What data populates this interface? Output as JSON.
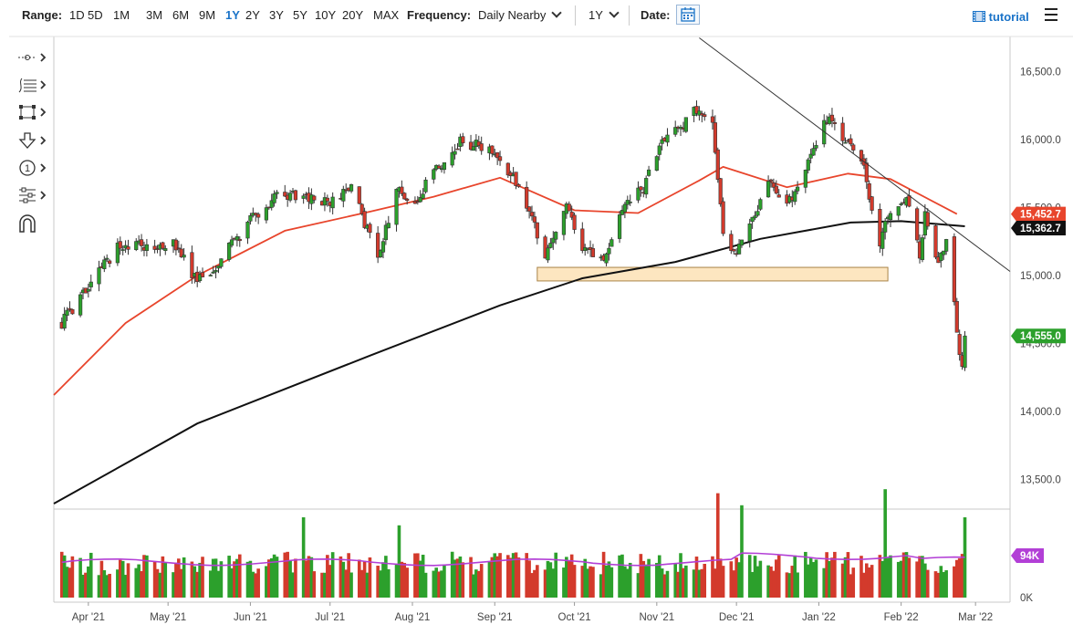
{
  "toolbar": {
    "range_label": "Range:",
    "ranges": [
      "1D",
      "5D",
      "1M",
      "3M",
      "6M",
      "9M",
      "1Y",
      "2Y",
      "3Y",
      "5Y",
      "10Y",
      "20Y",
      "MAX"
    ],
    "active_range": "1Y",
    "frequency_label": "Frequency:",
    "frequency_value": "Daily Nearby",
    "period_value": "1Y",
    "date_label": "Date:",
    "tutorial_label": "tutorial"
  },
  "icons": {
    "date": "calendar-icon",
    "tutorial": "film-icon",
    "menu": "hamburger-menu-icon",
    "tools": [
      "crosshair-tool-icon",
      "fib-lines-tool-icon",
      "rectangle-tool-icon",
      "arrow-down-tool-icon",
      "annotation-number-icon",
      "multi-line-tool-icon",
      "magnet-icon"
    ]
  },
  "colors": {
    "up": "#2ca02c",
    "down": "#d33a2c",
    "ma_fast": "#e8452c",
    "ma_slow": "#111111",
    "volume_avg": "#b23fd6",
    "support_zone": "#fde6c0",
    "support_zone_border": "#a88348"
  },
  "chart_data": {
    "type": "candlestick",
    "price_axis": {
      "ticks": [
        13500,
        14000,
        14500,
        15000,
        15500,
        16000,
        16500
      ],
      "tick_labels": [
        "13,500.0",
        "14,000.0",
        "14,500.0",
        "15,000.0",
        "15,500.0",
        "16,000.0",
        "16,500.0"
      ],
      "range": [
        13280,
        16760
      ]
    },
    "x_axis": {
      "labels": [
        "Apr '21",
        "May '21",
        "Jun '21",
        "Jul '21",
        "Aug '21",
        "Sep '21",
        "Oct '21",
        "Nov '21",
        "Dec '21",
        "Jan '22",
        "Feb '22",
        "Mar '22"
      ],
      "range": [
        "2021-03-19",
        "2022-03-14"
      ]
    },
    "price_key_points": [
      [
        "2021-03-22",
        14650
      ],
      [
        "2021-04-06",
        15050
      ],
      [
        "2021-04-12",
        15200
      ],
      [
        "2021-04-22",
        15220
      ],
      [
        "2021-05-03",
        15250
      ],
      [
        "2021-05-12",
        14950
      ],
      [
        "2021-05-20",
        15100
      ],
      [
        "2021-06-01",
        15400
      ],
      [
        "2021-06-10",
        15580
      ],
      [
        "2021-06-21",
        15580
      ],
      [
        "2021-07-01",
        15520
      ],
      [
        "2021-07-09",
        15640
      ],
      [
        "2021-07-19",
        15150
      ],
      [
        "2021-07-26",
        15620
      ],
      [
        "2021-08-02",
        15550
      ],
      [
        "2021-08-13",
        15850
      ],
      [
        "2021-08-19",
        16000
      ],
      [
        "2021-08-26",
        15950
      ],
      [
        "2021-09-03",
        15880
      ],
      [
        "2021-09-09",
        15680
      ],
      [
        "2021-09-20",
        15160
      ],
      [
        "2021-09-28",
        15510
      ],
      [
        "2021-10-04",
        15190
      ],
      [
        "2021-10-13",
        15120
      ],
      [
        "2021-10-18",
        15480
      ],
      [
        "2021-10-27",
        15650
      ],
      [
        "2021-11-03",
        16020
      ],
      [
        "2021-11-12",
        16130
      ],
      [
        "2021-11-17",
        16250
      ],
      [
        "2021-11-22",
        16100
      ],
      [
        "2021-11-26",
        15300
      ],
      [
        "2021-11-30",
        15150
      ],
      [
        "2021-12-06",
        15350
      ],
      [
        "2021-12-13",
        15700
      ],
      [
        "2021-12-20",
        15500
      ],
      [
        "2021-12-28",
        15850
      ],
      [
        "2022-01-05",
        16200
      ],
      [
        "2022-01-10",
        16000
      ],
      [
        "2022-01-14",
        15950
      ],
      [
        "2022-01-18",
        15800
      ],
      [
        "2022-01-24",
        15200
      ],
      [
        "2022-01-27",
        15450
      ],
      [
        "2022-02-03",
        15600
      ],
      [
        "2022-02-08",
        15150
      ],
      [
        "2022-02-10",
        15450
      ],
      [
        "2022-02-14",
        15100
      ],
      [
        "2022-02-18",
        15250
      ],
      [
        "2022-02-21",
        14800
      ],
      [
        "2022-02-23",
        14450
      ],
      [
        "2022-02-24",
        14350
      ],
      [
        "2022-02-25",
        14555
      ]
    ],
    "ma_fast_points": [
      [
        "2021-03-19",
        14120
      ],
      [
        "2021-04-15",
        14650
      ],
      [
        "2021-05-12",
        15000
      ],
      [
        "2021-06-14",
        15330
      ],
      [
        "2021-07-16",
        15470
      ],
      [
        "2021-08-09",
        15580
      ],
      [
        "2021-09-03",
        15720
      ],
      [
        "2021-10-01",
        15480
      ],
      [
        "2021-10-25",
        15460
      ],
      [
        "2021-11-17",
        15700
      ],
      [
        "2021-11-26",
        15800
      ],
      [
        "2021-12-20",
        15650
      ],
      [
        "2022-01-12",
        15750
      ],
      [
        "2022-01-28",
        15710
      ],
      [
        "2022-02-22",
        15452.7
      ]
    ],
    "ma_slow_points": [
      [
        "2021-03-19",
        13320
      ],
      [
        "2021-05-12",
        13910
      ],
      [
        "2021-07-16",
        14410
      ],
      [
        "2021-09-03",
        14780
      ],
      [
        "2021-10-04",
        14980
      ],
      [
        "2021-11-08",
        15100
      ],
      [
        "2021-12-10",
        15270
      ],
      [
        "2022-01-13",
        15390
      ],
      [
        "2022-02-01",
        15400
      ],
      [
        "2022-02-25",
        15362.7
      ]
    ],
    "trendline": {
      "from": [
        "2021-11-17",
        16750
      ],
      "to": [
        "2022-03-14",
        15030
      ]
    },
    "support_zone": {
      "from": "2021-09-17",
      "to": "2022-01-27",
      "low": 14960,
      "high": 15060
    },
    "volume": {
      "avg_label": "94K",
      "zero_label": "0K",
      "spikes": [
        [
          "2021-06-21",
          2.0
        ],
        [
          "2021-07-27",
          1.8
        ],
        [
          "2021-11-24",
          2.6
        ],
        [
          "2021-12-03",
          2.3
        ],
        [
          "2022-01-26",
          2.7
        ],
        [
          "2022-02-25",
          2.0
        ]
      ]
    },
    "badges": {
      "ma_fast_value": "15,452.7",
      "ma_slow_value": "15,362.7",
      "last_price": "14,555.0",
      "volume_avg": "94K"
    }
  }
}
